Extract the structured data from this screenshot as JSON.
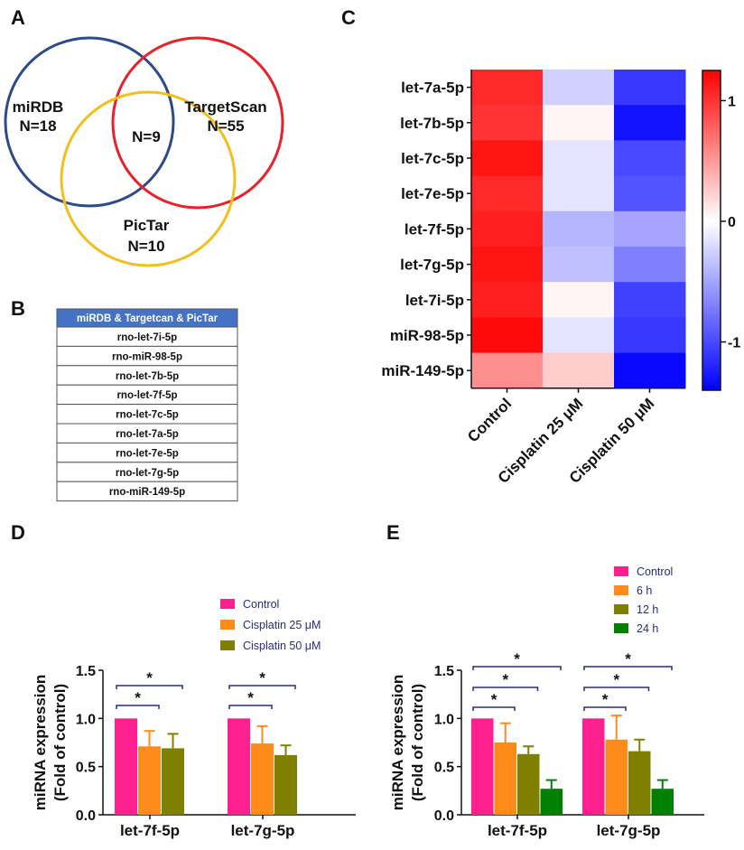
{
  "panels": {
    "a": "A",
    "b": "B",
    "c": "C",
    "d": "D",
    "e": "E"
  },
  "venn": {
    "sets": [
      {
        "name": "miRDB",
        "count": "N=18",
        "color": "#2d4a8a"
      },
      {
        "name": "TargetScan",
        "count": "N=55",
        "color": "#e8212b"
      },
      {
        "name": "PicTar",
        "count": "N=10",
        "color": "#f2bf1c"
      }
    ],
    "intersection": "N=9"
  },
  "table": {
    "header": "miRDB & Targetcan & PicTar",
    "header_color": "#4472c4",
    "rows": [
      "rno-let-7i-5p",
      "rno-miR-98-5p",
      "rno-let-7b-5p",
      "rno-let-7f-5p",
      "rno-let-7c-5p",
      "rno-let-7a-5p",
      "rno-let-7e-5p",
      "rno-let-7g-5p",
      "rno-miR-149-5p"
    ]
  },
  "chart_data": [
    {
      "type": "heatmap",
      "panel": "C",
      "rows": [
        "let-7a-5p",
        "let-7b-5p",
        "let-7c-5p",
        "let-7e-5p",
        "let-7f-5p",
        "let-7g-5p",
        "let-7i-5p",
        "miR-98-5p",
        "miR-149-5p"
      ],
      "columns": [
        "Control",
        "Cisplatin 25 μM",
        "Cisplatin 50 μM"
      ],
      "values": [
        [
          1.05,
          -0.25,
          -1.1
        ],
        [
          1.0,
          0.05,
          -1.3
        ],
        [
          1.15,
          -0.15,
          -1.0
        ],
        [
          1.05,
          -0.15,
          -0.95
        ],
        [
          1.1,
          -0.4,
          -0.5
        ],
        [
          1.15,
          -0.35,
          -0.7
        ],
        [
          1.1,
          0.05,
          -1.05
        ],
        [
          1.2,
          -0.15,
          -1.1
        ],
        [
          0.55,
          0.25,
          -1.35
        ]
      ],
      "colorbar_ticks": [
        1,
        0,
        -1
      ],
      "colorbar_tick_labels": [
        "1",
        "0",
        "-1"
      ],
      "vmin": -1.4,
      "vmax": 1.25,
      "colors": {
        "high": "#ff0000",
        "mid": "#ffffff",
        "low": "#0000ff"
      }
    },
    {
      "type": "bar",
      "panel": "D",
      "categories": [
        "let-7f-5p",
        "let-7g-5p"
      ],
      "series": [
        {
          "name": "Control",
          "values": [
            1.0,
            1.0
          ],
          "errors": [
            0,
            0
          ],
          "color": "#ff1f8f"
        },
        {
          "name": "Cisplatin 25 μM",
          "values": [
            0.71,
            0.74
          ],
          "errors": [
            0.16,
            0.18
          ],
          "color": "#ff8c1a"
        },
        {
          "name": "Cisplatin 50 μM",
          "values": [
            0.69,
            0.62
          ],
          "errors": [
            0.15,
            0.1
          ],
          "color": "#808000"
        }
      ],
      "significance": [
        {
          "category": 0,
          "from": 0,
          "to": 1,
          "label": "*"
        },
        {
          "category": 0,
          "from": 0,
          "to": 2,
          "label": "*"
        },
        {
          "category": 1,
          "from": 0,
          "to": 1,
          "label": "*"
        },
        {
          "category": 1,
          "from": 0,
          "to": 2,
          "label": "*"
        }
      ],
      "ylabel_line1": "miRNA expression",
      "ylabel_line2": "(Fold of control)",
      "ylim": [
        0,
        1.5
      ],
      "yticks": [
        "0.0",
        "0.5",
        "1.0",
        "1.5"
      ],
      "legend_position": "top-right"
    },
    {
      "type": "bar",
      "panel": "E",
      "categories": [
        "let-7f-5p",
        "let-7g-5p"
      ],
      "series": [
        {
          "name": "Control",
          "values": [
            1.0,
            1.0
          ],
          "errors": [
            0,
            0
          ],
          "color": "#ff1f8f"
        },
        {
          "name": "6 h",
          "values": [
            0.75,
            0.78
          ],
          "errors": [
            0.2,
            0.25
          ],
          "color": "#ff8c1a"
        },
        {
          "name": "12 h",
          "values": [
            0.63,
            0.66
          ],
          "errors": [
            0.08,
            0.12
          ],
          "color": "#808000"
        },
        {
          "name": "24 h",
          "values": [
            0.27,
            0.27
          ],
          "errors": [
            0.09,
            0.09
          ],
          "color": "#008000"
        }
      ],
      "significance": [
        {
          "category": 0,
          "from": 0,
          "to": 1,
          "label": "*"
        },
        {
          "category": 0,
          "from": 0,
          "to": 2,
          "label": "*"
        },
        {
          "category": 0,
          "from": 0,
          "to": 3,
          "label": "*"
        },
        {
          "category": 1,
          "from": 0,
          "to": 1,
          "label": "*"
        },
        {
          "category": 1,
          "from": 0,
          "to": 2,
          "label": "*"
        },
        {
          "category": 1,
          "from": 0,
          "to": 3,
          "label": "*"
        }
      ],
      "ylabel_line1": "miRNA expression",
      "ylabel_line2": "(Fold of control)",
      "ylim": [
        0,
        1.5
      ],
      "yticks": [
        "0.0",
        "0.5",
        "1.0",
        "1.5"
      ],
      "legend_position": "top-right"
    }
  ]
}
